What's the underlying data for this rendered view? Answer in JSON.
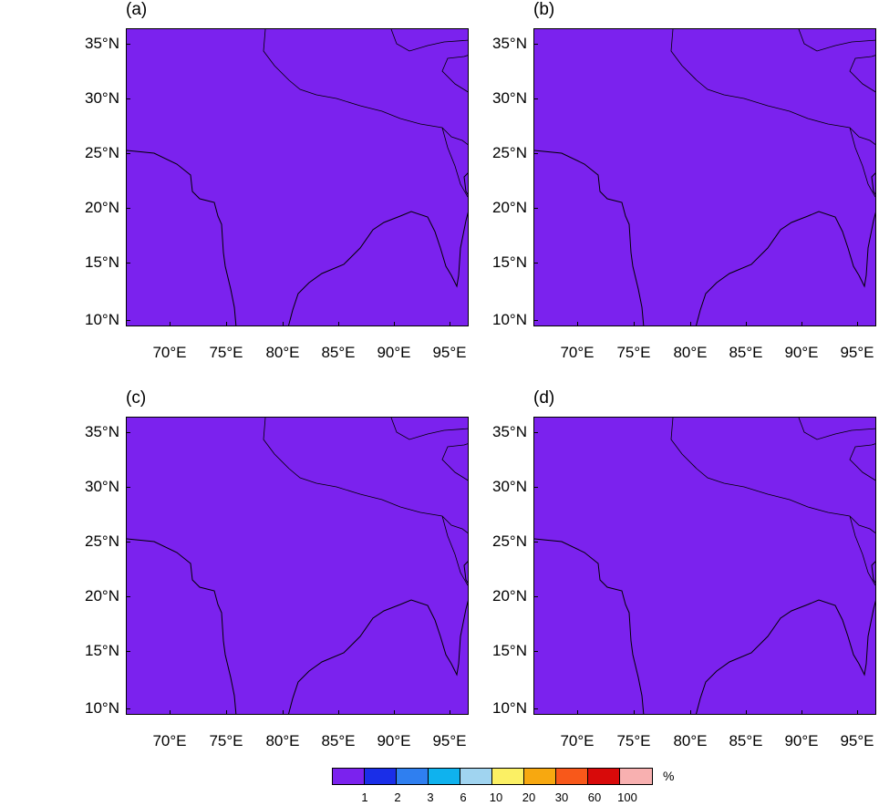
{
  "panels": [
    {
      "label": "(a)"
    },
    {
      "label": "(b)"
    },
    {
      "label": "(c)"
    },
    {
      "label": "(d)"
    }
  ],
  "axes": {
    "lat_ticks": [
      "35°N",
      "30°N",
      "25°N",
      "20°N",
      "15°N",
      "10°N"
    ],
    "lon_ticks": [
      "70°E",
      "75°E",
      "80°E",
      "85°E",
      "90°E",
      "95°E"
    ]
  },
  "colorbar": {
    "unit": "%",
    "levels": [
      "1",
      "2",
      "3",
      "6",
      "10",
      "20",
      "30",
      "60",
      "100"
    ],
    "colors": [
      "#7b22ee",
      "#1a2ee8",
      "#2f7ff0",
      "#0fb2ee",
      "#a0d4f0",
      "#fbf064",
      "#f7a810",
      "#f8581a",
      "#d80a0a",
      "#f8b0b0"
    ]
  },
  "colors": {
    "background_field": "#7b22ee",
    "coastline": "#000000"
  }
}
